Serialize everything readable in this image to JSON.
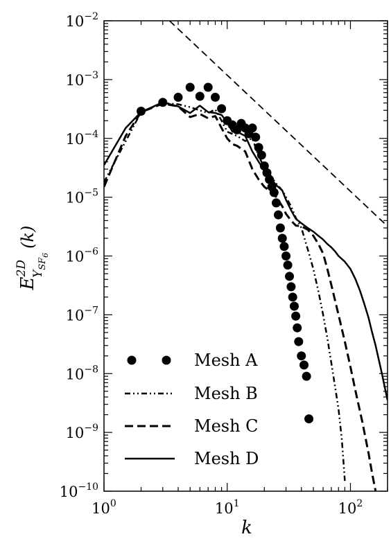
{
  "chart_data": {
    "type": "line",
    "xlabel": "k",
    "ylabel_main": "E",
    "ylabel_superscript": "2D",
    "ylabel_subscript": "Y",
    "ylabel_sub_sub": "SF",
    "ylabel_sub_sub_sub": "6",
    "ylabel_arg": "(k)",
    "xscale": "log",
    "yscale": "log",
    "xlim": [
      1,
      200
    ],
    "ylim": [
      1e-10,
      0.01
    ],
    "xticks": [
      {
        "value": 1,
        "base": "10",
        "exp": "0"
      },
      {
        "value": 10,
        "base": "10",
        "exp": "1"
      },
      {
        "value": 100,
        "base": "10",
        "exp": "2"
      }
    ],
    "yticks": [
      {
        "value": 0.01,
        "base": "10",
        "exp": "−2"
      },
      {
        "value": 0.001,
        "base": "10",
        "exp": "−3"
      },
      {
        "value": 0.0001,
        "base": "10",
        "exp": "−4"
      },
      {
        "value": 1e-05,
        "base": "10",
        "exp": "−5"
      },
      {
        "value": 1e-06,
        "base": "10",
        "exp": "−6"
      },
      {
        "value": 1e-07,
        "base": "10",
        "exp": "−7"
      },
      {
        "value": 1e-08,
        "base": "10",
        "exp": "−8"
      },
      {
        "value": 1e-09,
        "base": "10",
        "exp": "−9"
      },
      {
        "value": 1e-10,
        "base": "10",
        "exp": "−10"
      }
    ],
    "legend_position": "bottom-left",
    "series": [
      {
        "name": "Mesh A",
        "style": "markers",
        "points": [
          [
            2,
            0.00029
          ],
          [
            3,
            0.00041
          ],
          [
            4,
            0.0005
          ],
          [
            5,
            0.00074
          ],
          [
            6,
            0.00052
          ],
          [
            7,
            0.00074
          ],
          [
            8,
            0.0005
          ],
          [
            9,
            0.00032
          ],
          [
            10,
            0.0002
          ],
          [
            11,
            0.00017
          ],
          [
            12,
            0.00014
          ],
          [
            13,
            0.00018
          ],
          [
            14,
            0.00015
          ],
          [
            15,
            0.00012
          ],
          [
            16,
            0.00015
          ],
          [
            17,
            0.000105
          ],
          [
            18,
            7e-05
          ],
          [
            19,
            5.2e-05
          ],
          [
            20,
            3.4e-05
          ],
          [
            21,
            2.6e-05
          ],
          [
            22,
            2e-05
          ],
          [
            23,
            1.5e-05
          ],
          [
            24,
            1.2e-05
          ],
          [
            25,
            8e-06
          ],
          [
            26,
            5e-06
          ],
          [
            27,
            3e-06
          ],
          [
            28,
            2e-06
          ],
          [
            29,
            1.45e-06
          ],
          [
            30,
            1e-06
          ],
          [
            31,
            7e-07
          ],
          [
            32,
            4.5e-07
          ],
          [
            33,
            3e-07
          ],
          [
            34,
            2e-07
          ],
          [
            35,
            1.4e-07
          ],
          [
            36,
            9.5e-08
          ],
          [
            37,
            6e-08
          ],
          [
            38,
            3.5e-08
          ],
          [
            40,
            2e-08
          ],
          [
            42,
            1.4e-08
          ],
          [
            44,
            9e-09
          ],
          [
            46,
            1.7e-09
          ]
        ]
      },
      {
        "name": "Mesh B",
        "style": "dashdotdot",
        "points": [
          [
            1,
            1.8e-05
          ],
          [
            2,
            0.00028
          ],
          [
            3,
            0.0004
          ],
          [
            4,
            0.00038
          ],
          [
            5,
            0.00034
          ],
          [
            6,
            0.0003
          ],
          [
            7,
            0.00027
          ],
          [
            8,
            0.00031
          ],
          [
            9,
            0.0002
          ],
          [
            10,
            0.00013
          ],
          [
            12,
            0.00011
          ],
          [
            14,
            9e-05
          ],
          [
            16,
            0.0001
          ],
          [
            18,
            5e-05
          ],
          [
            20,
            3.2e-05
          ],
          [
            22,
            2.5e-05
          ],
          [
            25,
            1.7e-05
          ],
          [
            28,
            1.3e-05
          ],
          [
            30,
            1e-05
          ],
          [
            33,
            7e-06
          ],
          [
            36,
            4.5e-06
          ],
          [
            40,
            3e-06
          ],
          [
            45,
            1.3e-06
          ],
          [
            50,
            6e-07
          ],
          [
            55,
            2.5e-07
          ],
          [
            60,
            1e-07
          ],
          [
            65,
            4e-08
          ],
          [
            70,
            1.5e-08
          ],
          [
            75,
            6e-09
          ],
          [
            80,
            2.5e-09
          ],
          [
            85,
            8e-10
          ],
          [
            88,
            3e-10
          ],
          [
            90,
            1.5e-10
          ]
        ]
      },
      {
        "name": "Mesh C",
        "style": "dashed",
        "points": [
          [
            1,
            1.5e-05
          ],
          [
            1.5,
            0.00011
          ],
          [
            2,
            0.00028
          ],
          [
            3,
            0.00039
          ],
          [
            4,
            0.00035
          ],
          [
            5,
            0.00023
          ],
          [
            6,
            0.00026
          ],
          [
            7,
            0.00022
          ],
          [
            8,
            0.00024
          ],
          [
            9,
            0.00015
          ],
          [
            10,
            0.0001
          ],
          [
            11,
            8e-05
          ],
          [
            12,
            7.5e-05
          ],
          [
            14,
            6e-05
          ],
          [
            16,
            3e-05
          ],
          [
            18,
            2e-05
          ],
          [
            20,
            1.5e-05
          ],
          [
            22,
            1.3e-05
          ],
          [
            25,
            1e-05
          ],
          [
            28,
            7e-06
          ],
          [
            30,
            5.2e-06
          ],
          [
            33,
            4e-06
          ],
          [
            36,
            3.3e-06
          ],
          [
            40,
            3.2e-06
          ],
          [
            45,
            2.8e-06
          ],
          [
            50,
            2.2e-06
          ],
          [
            55,
            1.6e-06
          ],
          [
            60,
            1.1e-06
          ],
          [
            65,
            6e-07
          ],
          [
            70,
            3.2e-07
          ],
          [
            80,
            1e-07
          ],
          [
            90,
            3.5e-08
          ],
          [
            100,
            1.3e-08
          ],
          [
            110,
            5e-09
          ],
          [
            125,
            1.5e-09
          ],
          [
            140,
            4.5e-10
          ],
          [
            150,
            2e-10
          ],
          [
            160,
            1e-10
          ]
        ]
      },
      {
        "name": "Mesh D",
        "style": "solid",
        "points": [
          [
            1,
            3.5e-05
          ],
          [
            1.5,
            0.00015
          ],
          [
            2,
            0.00028
          ],
          [
            3,
            0.00041
          ],
          [
            4,
            0.00035
          ],
          [
            5,
            0.00027
          ],
          [
            6,
            0.00036
          ],
          [
            7,
            0.00028
          ],
          [
            8,
            0.00027
          ],
          [
            9,
            0.00025
          ],
          [
            10,
            0.00019
          ],
          [
            11,
            0.00013
          ],
          [
            12,
            0.00013
          ],
          [
            14,
            0.00011
          ],
          [
            16,
            6e-05
          ],
          [
            18,
            4e-05
          ],
          [
            20,
            2.8e-05
          ],
          [
            22,
            2.2e-05
          ],
          [
            25,
            1.6e-05
          ],
          [
            28,
            1.3e-05
          ],
          [
            30,
            9e-06
          ],
          [
            33,
            6e-06
          ],
          [
            36,
            4.3e-06
          ],
          [
            40,
            3.6e-06
          ],
          [
            45,
            3e-06
          ],
          [
            50,
            2.6e-06
          ],
          [
            55,
            2.2e-06
          ],
          [
            60,
            1.9e-06
          ],
          [
            65,
            1.6e-06
          ],
          [
            70,
            1.4e-06
          ],
          [
            75,
            1.2e-06
          ],
          [
            80,
            1e-06
          ],
          [
            90,
            8e-07
          ],
          [
            100,
            6e-07
          ],
          [
            110,
            4e-07
          ],
          [
            120,
            2.5e-07
          ],
          [
            130,
            1.5e-07
          ],
          [
            140,
            9e-08
          ],
          [
            150,
            5e-08
          ],
          [
            160,
            3e-08
          ],
          [
            180,
            1e-08
          ],
          [
            200,
            3.5e-09
          ]
        ]
      },
      {
        "name": "",
        "style": "reference-dashed",
        "points": [
          [
            3.4,
            0.01
          ],
          [
            200,
            3.2e-06
          ]
        ]
      }
    ]
  }
}
